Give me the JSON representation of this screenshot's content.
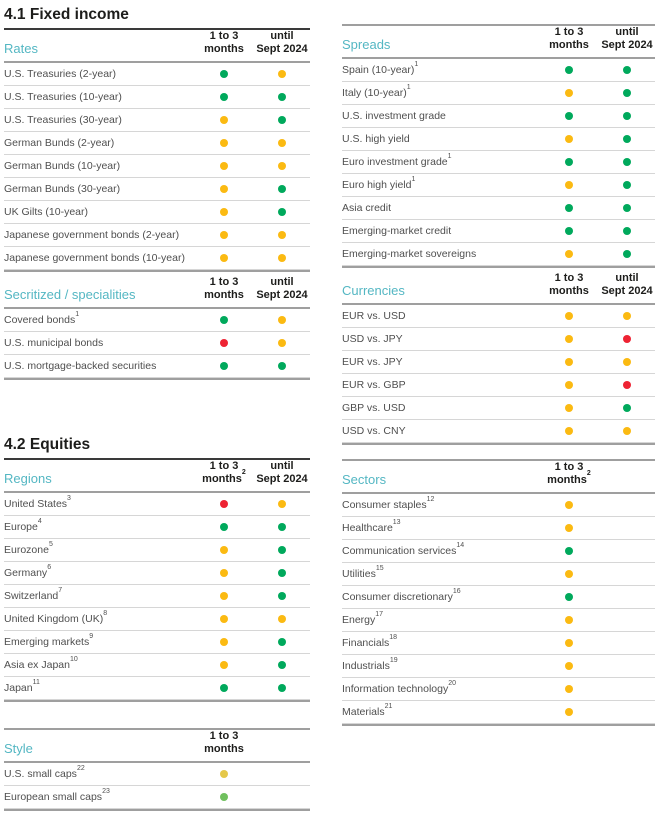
{
  "titles": {
    "fixed_income": "4.1 Fixed income",
    "equities": "4.2 Equities"
  },
  "colors": {
    "green": "#00a95c",
    "yellow": "#fbba12",
    "red": "#ee2333",
    "light_green": "#70c05e",
    "light_yellow": "#e5c84a",
    "category_teal": "#54b7c3"
  },
  "tables": [
    {
      "id": "rates",
      "category": "Rates",
      "headers": [
        {
          "line1": "1 to 3",
          "line2": "months",
          "sup": ""
        },
        {
          "line1": "until",
          "line2": "Sept 2024",
          "sup": ""
        }
      ],
      "rows": [
        {
          "label": "U.S. Treasuries (2-year)",
          "sup": "",
          "dots": [
            "green",
            "yellow"
          ]
        },
        {
          "label": "U.S. Treasuries (10-year)",
          "sup": "",
          "dots": [
            "green",
            "green"
          ]
        },
        {
          "label": "U.S. Treasuries (30-year)",
          "sup": "",
          "dots": [
            "yellow",
            "green"
          ]
        },
        {
          "label": "German Bunds (2-year)",
          "sup": "",
          "dots": [
            "yellow",
            "yellow"
          ]
        },
        {
          "label": "German Bunds (10-year)",
          "sup": "",
          "dots": [
            "yellow",
            "yellow"
          ]
        },
        {
          "label": "German Bunds (30-year)",
          "sup": "",
          "dots": [
            "yellow",
            "green"
          ]
        },
        {
          "label": "UK Gilts (10-year)",
          "sup": "",
          "dots": [
            "yellow",
            "green"
          ]
        },
        {
          "label": "Japanese government bonds (2-year)",
          "sup": "",
          "dots": [
            "yellow",
            "yellow"
          ]
        },
        {
          "label": "Japanese government bonds (10-year)",
          "sup": "",
          "dots": [
            "yellow",
            "yellow"
          ]
        }
      ]
    },
    {
      "id": "spreads",
      "category": "Spreads",
      "headers": [
        {
          "line1": "1 to 3",
          "line2": "months",
          "sup": ""
        },
        {
          "line1": "until",
          "line2": "Sept 2024",
          "sup": ""
        }
      ],
      "rows": [
        {
          "label": "Spain (10-year)",
          "sup": "1",
          "dots": [
            "green",
            "green"
          ]
        },
        {
          "label": "Italy (10-year)",
          "sup": "1",
          "dots": [
            "yellow",
            "green"
          ]
        },
        {
          "label": "U.S. investment grade",
          "sup": "",
          "dots": [
            "green",
            "green"
          ]
        },
        {
          "label": "U.S. high yield",
          "sup": "",
          "dots": [
            "yellow",
            "green"
          ]
        },
        {
          "label": "Euro investment grade",
          "sup": "1",
          "dots": [
            "green",
            "green"
          ]
        },
        {
          "label": "Euro high yield",
          "sup": "1",
          "dots": [
            "yellow",
            "green"
          ]
        },
        {
          "label": "Asia credit",
          "sup": "",
          "dots": [
            "green",
            "green"
          ]
        },
        {
          "label": "Emerging-market credit",
          "sup": "",
          "dots": [
            "green",
            "green"
          ]
        },
        {
          "label": "Emerging-market sovereigns",
          "sup": "",
          "dots": [
            "yellow",
            "green"
          ]
        }
      ]
    },
    {
      "id": "secritized",
      "category": "Secritized / specialities",
      "headers": [
        {
          "line1": "1 to 3",
          "line2": "months",
          "sup": ""
        },
        {
          "line1": "until",
          "line2": "Sept 2024",
          "sup": ""
        }
      ],
      "rows": [
        {
          "label": "Covered bonds",
          "sup": "1",
          "dots": [
            "green",
            "yellow"
          ]
        },
        {
          "label": "U.S. municipal bonds",
          "sup": "",
          "dots": [
            "red",
            "yellow"
          ]
        },
        {
          "label": "U.S. mortgage-backed securities",
          "sup": "",
          "dots": [
            "green",
            "green"
          ]
        }
      ]
    },
    {
      "id": "currencies",
      "category": "Currencies",
      "headers": [
        {
          "line1": "1 to 3",
          "line2": "months",
          "sup": ""
        },
        {
          "line1": "until",
          "line2": "Sept 2024",
          "sup": ""
        }
      ],
      "rows": [
        {
          "label": "EUR vs. USD",
          "sup": "",
          "dots": [
            "yellow",
            "yellow"
          ]
        },
        {
          "label": "USD vs. JPY",
          "sup": "",
          "dots": [
            "yellow",
            "red"
          ]
        },
        {
          "label": "EUR vs. JPY",
          "sup": "",
          "dots": [
            "yellow",
            "yellow"
          ]
        },
        {
          "label": "EUR vs. GBP",
          "sup": "",
          "dots": [
            "yellow",
            "red"
          ]
        },
        {
          "label": "GBP vs. USD",
          "sup": "",
          "dots": [
            "yellow",
            "green"
          ]
        },
        {
          "label": "USD vs. CNY",
          "sup": "",
          "dots": [
            "yellow",
            "yellow"
          ]
        }
      ]
    },
    {
      "id": "regions",
      "category": "Regions",
      "headers": [
        {
          "line1": "1 to 3",
          "line2": "months",
          "sup": "2"
        },
        {
          "line1": "until",
          "line2": "Sept 2024",
          "sup": ""
        }
      ],
      "rows": [
        {
          "label": "United States",
          "sup": "3",
          "dots": [
            "red",
            "yellow"
          ]
        },
        {
          "label": "Europe",
          "sup": "4",
          "dots": [
            "green",
            "green"
          ]
        },
        {
          "label": "Eurozone",
          "sup": "5",
          "dots": [
            "yellow",
            "green"
          ]
        },
        {
          "label": "Germany",
          "sup": "6",
          "dots": [
            "yellow",
            "green"
          ]
        },
        {
          "label": "Switzerland",
          "sup": "7",
          "dots": [
            "yellow",
            "green"
          ]
        },
        {
          "label": "United Kingdom (UK)",
          "sup": "8",
          "dots": [
            "yellow",
            "yellow"
          ]
        },
        {
          "label": "Emerging markets",
          "sup": "9",
          "dots": [
            "yellow",
            "green"
          ]
        },
        {
          "label": "Asia ex Japan",
          "sup": "10",
          "dots": [
            "yellow",
            "green"
          ]
        },
        {
          "label": "Japan",
          "sup": "11",
          "dots": [
            "green",
            "green"
          ]
        }
      ]
    },
    {
      "id": "sectors",
      "category": "Sectors",
      "headers": [
        {
          "line1": "1 to 3",
          "line2": "months",
          "sup": "2"
        }
      ],
      "rows": [
        {
          "label": "Consumer staples",
          "sup": "12",
          "dots": [
            "yellow"
          ]
        },
        {
          "label": "Healthcare",
          "sup": "13",
          "dots": [
            "yellow"
          ]
        },
        {
          "label": "Communication services",
          "sup": "14",
          "dots": [
            "green"
          ]
        },
        {
          "label": "Utilities",
          "sup": "15",
          "dots": [
            "yellow"
          ]
        },
        {
          "label": "Consumer discretionary",
          "sup": "16",
          "dots": [
            "green"
          ]
        },
        {
          "label": "Energy",
          "sup": "17",
          "dots": [
            "yellow"
          ]
        },
        {
          "label": "Financials",
          "sup": "18",
          "dots": [
            "yellow"
          ]
        },
        {
          "label": "Industrials",
          "sup": "19",
          "dots": [
            "yellow"
          ]
        },
        {
          "label": "Information technology",
          "sup": "20",
          "dots": [
            "yellow"
          ]
        },
        {
          "label": "Materials",
          "sup": "21",
          "dots": [
            "yellow"
          ]
        }
      ]
    },
    {
      "id": "style",
      "category": "Style",
      "headers": [
        {
          "line1": "1 to 3",
          "line2": "months",
          "sup": ""
        }
      ],
      "rows": [
        {
          "label": "U.S. small caps",
          "sup": "22",
          "dots": [
            "light_yellow"
          ]
        },
        {
          "label": "European small caps",
          "sup": "23",
          "dots": [
            "light_green"
          ]
        }
      ]
    }
  ]
}
